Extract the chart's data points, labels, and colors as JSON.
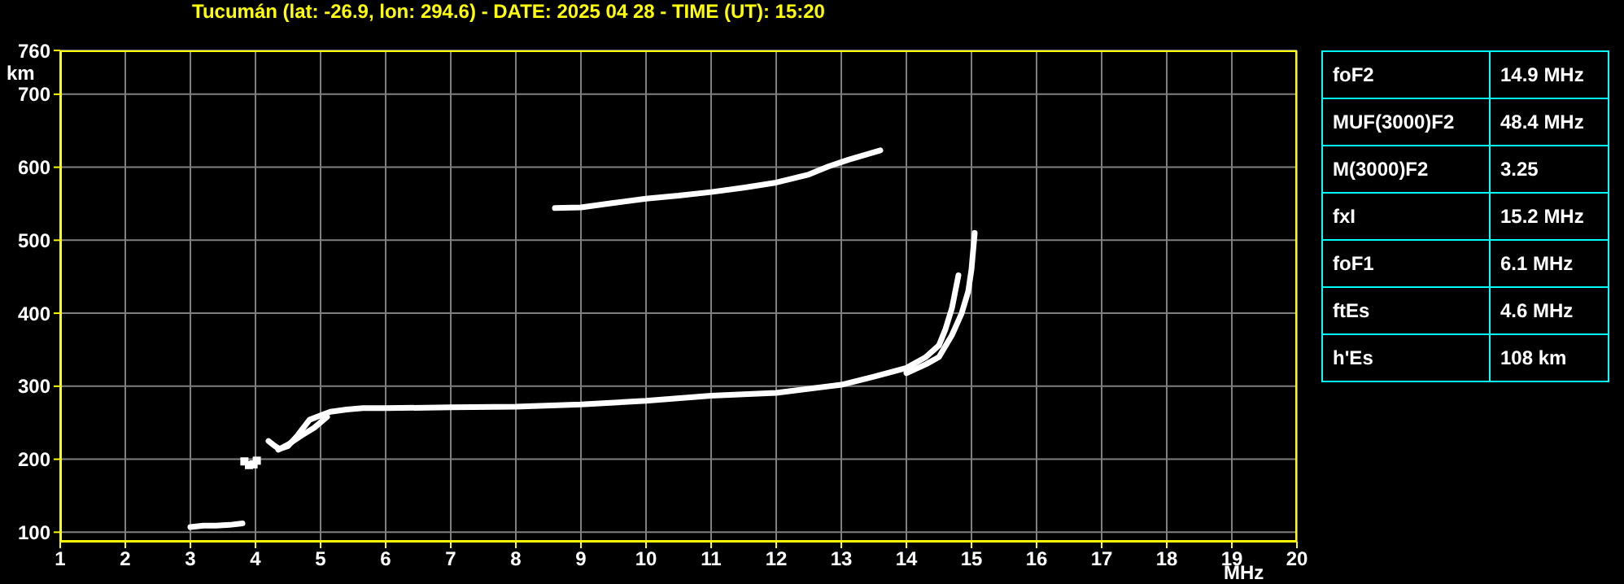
{
  "chart_data": [
    {
      "type": "line",
      "title": "Tucumán (lat: -26.9, lon: 294.6) - DATE: 2025 04 28 - TIME (UT): 15:20",
      "xlabel": "MHz",
      "ylabel": "km",
      "xlim": [
        1,
        20
      ],
      "xticks": [
        1,
        2,
        3,
        4,
        5,
        6,
        7,
        8,
        9,
        10,
        11,
        12,
        13,
        14,
        15,
        16,
        17,
        18,
        19,
        20
      ],
      "ylim": [
        87,
        760
      ],
      "yticks": [
        100,
        200,
        300,
        400,
        500,
        600,
        700,
        760
      ],
      "grid": true,
      "marker": "none",
      "line_style": "solid",
      "series": [
        {
          "color": "#ffffff",
          "x": [
            3.0,
            3.2,
            3.4,
            3.6,
            3.8
          ],
          "values": [
            107,
            109,
            109,
            110,
            112
          ]
        },
        {
          "type": "scatter",
          "marker": "square",
          "color": "#ffffff",
          "x": [
            3.83,
            3.9,
            3.97,
            4.02
          ],
          "values": [
            197,
            192,
            193,
            198
          ]
        },
        {
          "color": "#ffffff",
          "x": [
            4.2,
            4.3,
            4.37,
            4.5,
            4.65,
            4.83,
            5.0,
            5.15,
            5.4,
            5.65,
            6,
            7,
            8,
            9,
            10,
            11,
            12,
            13,
            13.5,
            14,
            14.3,
            14.5,
            14.6,
            14.7,
            14.8
          ],
          "values": [
            225,
            218,
            214,
            218,
            233,
            254,
            260,
            265,
            268,
            270,
            270,
            271,
            272,
            275,
            280,
            287,
            291,
            302,
            313,
            325,
            340,
            356,
            378,
            407,
            452
          ]
        },
        {
          "color": "#ffffff",
          "x": [
            4.35,
            4.5,
            4.7,
            4.9,
            5.1
          ],
          "values": [
            213,
            220,
            232,
            243,
            258
          ]
        },
        {
          "color": "#ffffff",
          "x": [
            14.0,
            14.3,
            14.5,
            14.7,
            14.85,
            14.95,
            15.0,
            15.05
          ],
          "values": [
            318,
            330,
            340,
            370,
            400,
            430,
            460,
            510
          ]
        },
        {
          "color": "#ffffff",
          "x": [
            8.6,
            9.0,
            9.5,
            10,
            10.5,
            11,
            11.5,
            12,
            12.5,
            12.8,
            13.1,
            13.6
          ],
          "values": [
            544,
            545,
            551,
            557,
            561,
            566,
            572,
            579,
            590,
            601,
            610,
            623
          ]
        }
      ]
    },
    {
      "type": "other",
      "annotations": [
        "foF2",
        "14.9 MHz",
        "MUF(3000)F2",
        "48.4 MHz",
        "M(3000)F2",
        "3.25",
        "fxI",
        "15.2 MHz",
        "foF1",
        "6.1 MHz",
        "ftEs",
        "4.6 MHz",
        "h'Es",
        "108 km"
      ]
    }
  ]
}
